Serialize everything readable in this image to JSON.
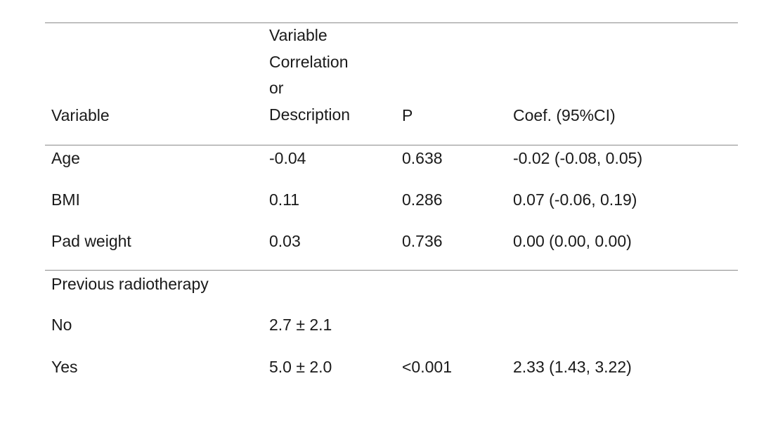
{
  "table": {
    "header": {
      "variable": "Variable",
      "desc_lines": [
        "Variable",
        "Correlation",
        "or",
        "Description"
      ],
      "p": "P",
      "coef": "Coef. (95%CI)"
    },
    "continuous_rows": [
      {
        "variable": "Age",
        "desc": "-0.04",
        "p": "0.638",
        "coef": "-0.02 (-0.08, 0.05)"
      },
      {
        "variable": "BMI",
        "desc": "0.11",
        "p": "0.286",
        "coef": "0.07 (-0.06, 0.19)"
      },
      {
        "variable": "Pad weight",
        "desc": "0.03",
        "p": "0.736",
        "coef": "0.00 (0.00, 0.00)"
      }
    ],
    "group": {
      "title": "Previous radiotherapy",
      "rows": [
        {
          "variable": "No",
          "desc": "2.7 ± 2.1",
          "p": "",
          "coef": ""
        },
        {
          "variable": "Yes",
          "desc": "5.0 ± 2.0",
          "p": "<0.001",
          "coef": "2.33 (1.43, 3.22)"
        }
      ]
    }
  }
}
